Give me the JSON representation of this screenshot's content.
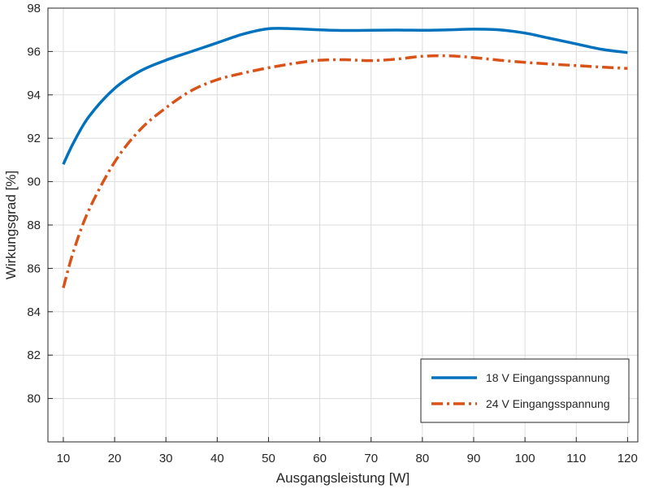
{
  "chart_data": {
    "type": "line",
    "xlabel": "Ausgangsleistung [W]",
    "ylabel": "Wirkungsgrad [%]",
    "xlim": [
      7,
      122
    ],
    "ylim": [
      78,
      98
    ],
    "xticks": [
      10,
      20,
      30,
      40,
      50,
      60,
      70,
      80,
      90,
      100,
      110,
      120
    ],
    "yticks": [
      80,
      82,
      84,
      86,
      88,
      90,
      92,
      94,
      96,
      98
    ],
    "grid": true,
    "legend_position": "bottom-right",
    "colors": {
      "series1": "#0072BD",
      "series2": "#D95319",
      "grid": "#dcdcdc",
      "axis": "#262626"
    },
    "series": [
      {
        "name": "18 V Eingangsspannung",
        "style": "solid",
        "x": [
          10,
          12,
          15,
          20,
          25,
          30,
          35,
          40,
          45,
          50,
          55,
          60,
          65,
          70,
          75,
          80,
          85,
          90,
          95,
          100,
          105,
          110,
          115,
          120
        ],
        "y": [
          90.8,
          91.8,
          93.0,
          94.3,
          95.1,
          95.6,
          96.0,
          96.4,
          96.8,
          97.05,
          97.05,
          97.0,
          96.97,
          96.98,
          96.99,
          96.98,
          97.0,
          97.03,
          97.0,
          96.85,
          96.6,
          96.35,
          96.1,
          95.95
        ]
      },
      {
        "name": "24 V Eingangsspannung",
        "style": "dashdot",
        "x": [
          10,
          12,
          15,
          20,
          25,
          30,
          35,
          40,
          45,
          50,
          55,
          60,
          65,
          70,
          75,
          80,
          85,
          90,
          95,
          100,
          105,
          110,
          115,
          120
        ],
        "y": [
          85.1,
          86.8,
          88.7,
          90.9,
          92.4,
          93.4,
          94.2,
          94.7,
          95.0,
          95.25,
          95.45,
          95.6,
          95.62,
          95.58,
          95.65,
          95.78,
          95.8,
          95.72,
          95.6,
          95.5,
          95.42,
          95.35,
          95.28,
          95.22
        ]
      }
    ]
  }
}
